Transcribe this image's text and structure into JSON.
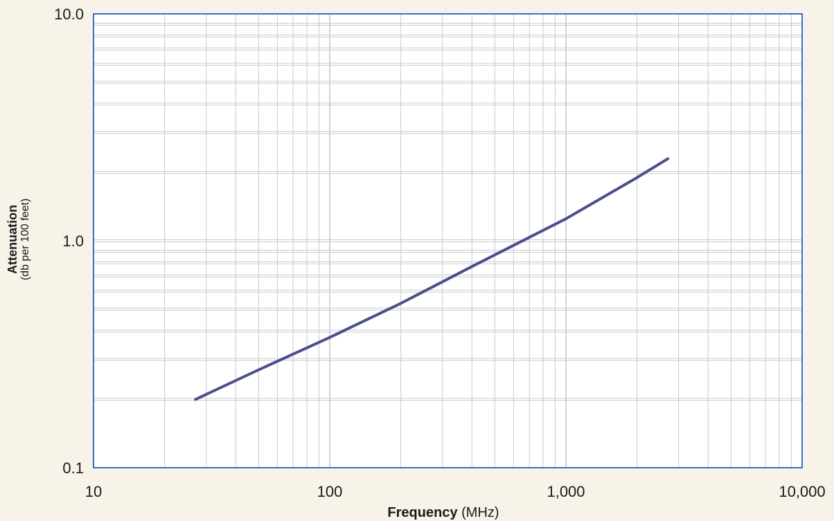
{
  "chart_data": {
    "type": "line",
    "title": "",
    "xlabel": {
      "bold": "Frequency",
      "normal": " (MHz)"
    },
    "ylabel": {
      "bold": "Attenuation",
      "normal": "(db per 100 feet)"
    },
    "x_scale": "log",
    "y_scale": "log",
    "xlim": [
      10,
      10000
    ],
    "ylim": [
      0.1,
      10
    ],
    "x_ticks": [
      {
        "value": 10,
        "label": "10"
      },
      {
        "value": 100,
        "label": "100"
      },
      {
        "value": 1000,
        "label": "1,000"
      },
      {
        "value": 10000,
        "label": "10,000"
      }
    ],
    "y_ticks": [
      {
        "value": 0.1,
        "label": "0.1"
      },
      {
        "value": 1,
        "label": "1.0"
      },
      {
        "value": 10,
        "label": "10.0"
      }
    ],
    "grid": true,
    "legend": "none",
    "colors": {
      "line": "#4a4f8c",
      "frame": "#3c6fbd",
      "grid": "#c9c9c9",
      "plot_bg": "#ffffff",
      "page_bg": "#f7f3e8"
    },
    "series": [
      {
        "x": [
          27,
          50,
          100,
          200,
          400,
          1000,
          2000,
          2700
        ],
        "y": [
          0.2,
          0.27,
          0.375,
          0.53,
          0.77,
          1.25,
          1.9,
          2.3
        ]
      }
    ]
  }
}
